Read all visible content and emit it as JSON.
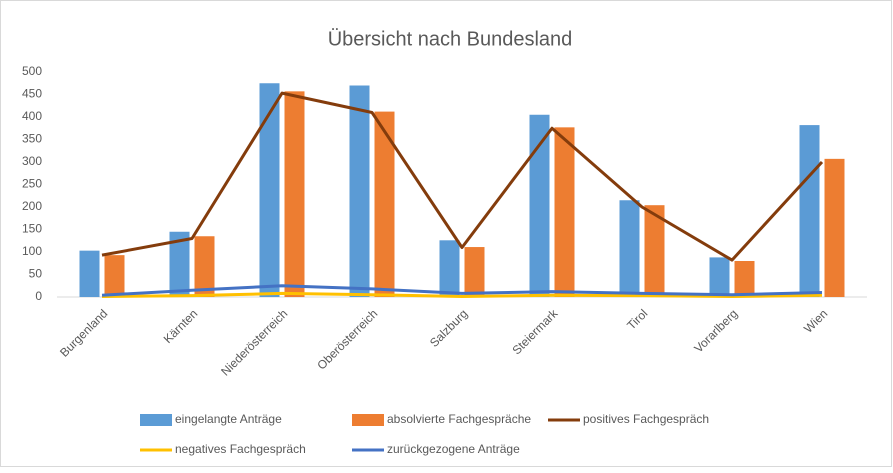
{
  "chart_data": {
    "type": "bar",
    "title": "Übersicht nach Bundesland",
    "categories": [
      "Burgenland",
      "Kärnten",
      "Niederösterreich",
      "Oberösterreich",
      "Salzburg",
      "Steiermark",
      "Tirol",
      "Vorarlberg",
      "Wien"
    ],
    "series": [
      {
        "name": "eingelangte Anträge",
        "type": "bar",
        "color": "#5b9bd5",
        "values": [
          103,
          145,
          475,
          470,
          126,
          405,
          215,
          88,
          382
        ]
      },
      {
        "name": "absolvierte Fachgespräche",
        "type": "bar",
        "color": "#ed7d31",
        "values": [
          93,
          135,
          457,
          412,
          111,
          377,
          204,
          80,
          307
        ]
      },
      {
        "name": "positives Fachgespräch",
        "type": "line",
        "color": "#843c0c",
        "values": [
          93,
          130,
          453,
          410,
          110,
          375,
          200,
          82,
          300
        ]
      },
      {
        "name": "negatives Fachgespräch",
        "type": "line",
        "color": "#ffc000",
        "values": [
          1,
          3,
          8,
          5,
          1,
          4,
          3,
          1,
          4
        ]
      },
      {
        "name": "zurückgezogene Anträge",
        "type": "line",
        "color": "#4472c4",
        "values": [
          4,
          15,
          25,
          18,
          8,
          12,
          8,
          5,
          10
        ]
      }
    ],
    "ylim": [
      0,
      500
    ],
    "yticks": [
      0,
      50,
      100,
      150,
      200,
      250,
      300,
      350,
      400,
      450,
      500
    ],
    "grid": false
  }
}
